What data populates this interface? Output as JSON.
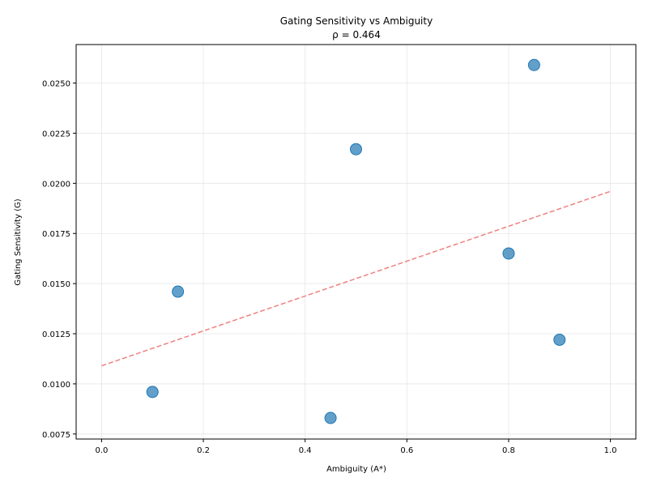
{
  "chart_data": {
    "type": "scatter",
    "title": "Gating Sensitivity vs Ambiguity",
    "subtitle": "ρ = 0.464",
    "xlabel": "Ambiguity (A*)",
    "ylabel": "Gating Sensitivity (G)",
    "xlim": [
      -0.05,
      1.05
    ],
    "ylim": [
      0.00725,
      0.02692
    ],
    "xticks": [
      0.0,
      0.2,
      0.4,
      0.6,
      0.8,
      1.0
    ],
    "xtick_labels": [
      "0.0",
      "0.2",
      "0.4",
      "0.6",
      "0.8",
      "1.0"
    ],
    "yticks": [
      0.0075,
      0.01,
      0.0125,
      0.015,
      0.0175,
      0.02,
      0.0225,
      0.025
    ],
    "ytick_labels": [
      "0.0075",
      "0.0100",
      "0.0125",
      "0.0150",
      "0.0175",
      "0.0200",
      "0.0225",
      "0.0250"
    ],
    "grid": true,
    "points": [
      {
        "x": 0.1,
        "y": 0.0096
      },
      {
        "x": 0.15,
        "y": 0.0146
      },
      {
        "x": 0.45,
        "y": 0.0083
      },
      {
        "x": 0.5,
        "y": 0.0217
      },
      {
        "x": 0.8,
        "y": 0.0165
      },
      {
        "x": 0.85,
        "y": 0.0259
      },
      {
        "x": 0.9,
        "y": 0.0122
      }
    ],
    "trend_line": {
      "x": [
        0.0,
        1.0
      ],
      "y": [
        0.0109,
        0.0196
      ]
    },
    "colors": {
      "points": "#1f77b4",
      "trend": "#f08080",
      "grid": "#e6e6e6",
      "axes": "#000000"
    }
  }
}
